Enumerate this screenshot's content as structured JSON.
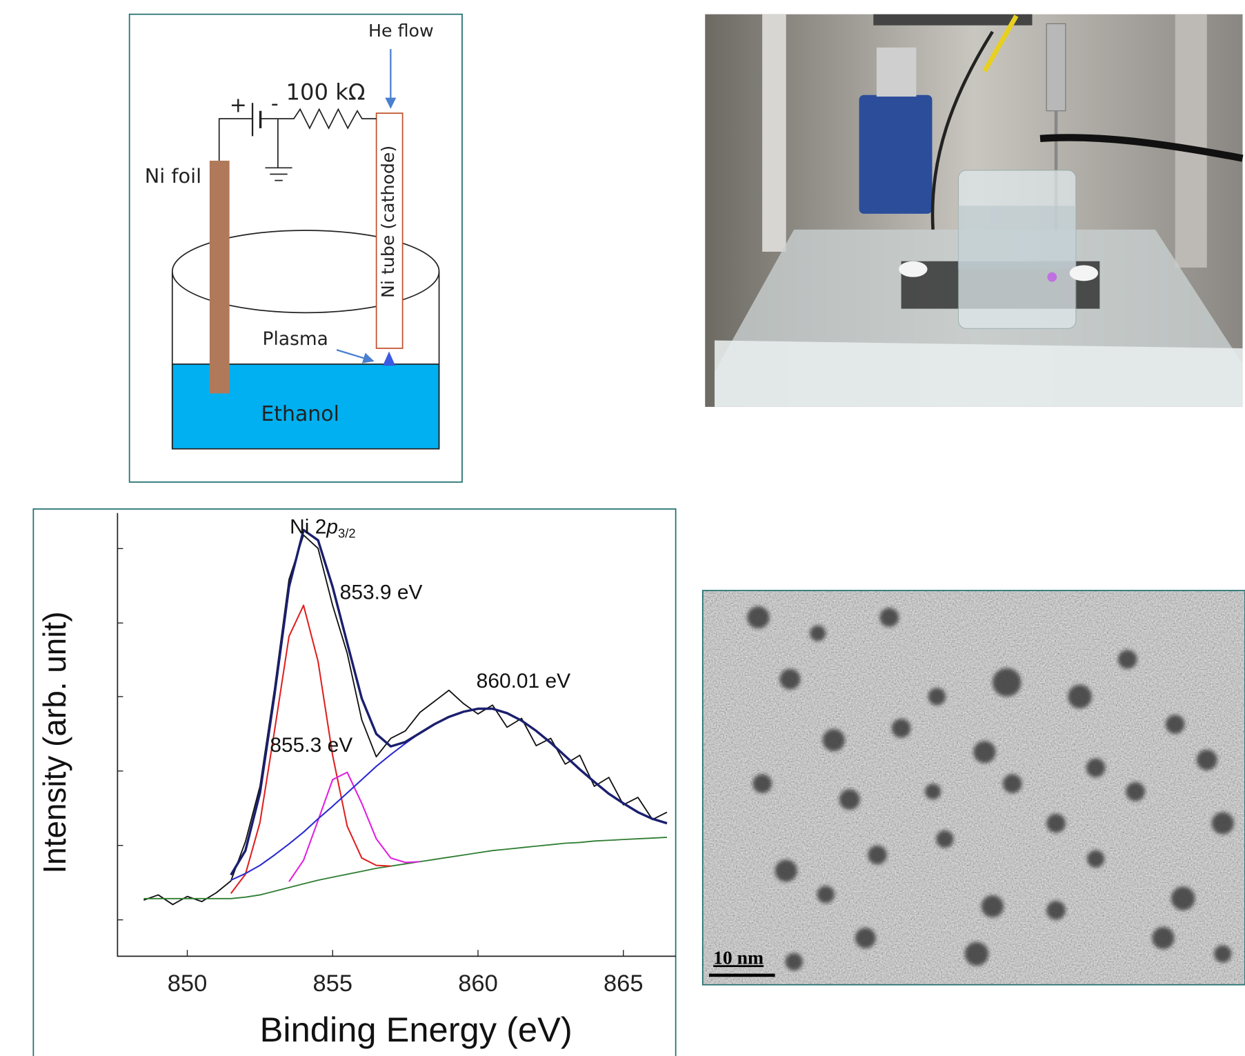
{
  "diagram": {
    "he_flow": "He flow",
    "plus": "+",
    "minus": "-",
    "resistor": "100 kΩ",
    "foil": "Ni foil",
    "tube": "Ni tube (cathode)",
    "plasma": "Plasma",
    "liquid": "Ethanol"
  },
  "tem": {
    "scale_bar": "10 nm"
  },
  "chart_data": {
    "type": "line",
    "xlabel": "Binding Energy (eV)",
    "ylabel": "Intensity (arb. unit)",
    "peak_label": {
      "text": "Ni 2",
      "italic": "p",
      "subscript": "3/2"
    },
    "annotations": [
      "853.9 eV",
      "860.01 eV",
      "855.3 eV"
    ],
    "xlim": [
      847.6,
      866.8
    ],
    "xticks": [
      850,
      855,
      860,
      865
    ],
    "ylim": [
      0,
      6
    ],
    "series": [
      {
        "color": "#111111",
        "width": 1.6,
        "x": [
          848.5,
          849,
          849.5,
          850,
          850.5,
          851,
          851.5,
          852,
          852.5,
          853,
          853.5,
          854,
          854.5,
          855,
          855.5,
          856,
          856.5,
          857,
          857.5,
          858,
          858.5,
          859,
          859.5,
          860,
          860.5,
          861,
          861.5,
          862,
          862.5,
          863,
          863.5,
          864,
          864.5,
          865,
          865.5,
          866,
          866.5
        ],
        "values": [
          0.76,
          0.83,
          0.7,
          0.81,
          0.74,
          0.86,
          1.02,
          1.55,
          2.3,
          3.62,
          5.1,
          5.7,
          5.52,
          4.75,
          4.1,
          3.2,
          2.7,
          2.95,
          3.05,
          3.3,
          3.45,
          3.6,
          3.42,
          3.28,
          3.4,
          3.1,
          3.22,
          2.85,
          2.95,
          2.6,
          2.72,
          2.3,
          2.42,
          2.05,
          2.15,
          1.85,
          1.95
        ]
      },
      {
        "color": "#2e7d32",
        "width": 1.6,
        "x": [
          848.5,
          849,
          849.5,
          850,
          850.5,
          851,
          851.5,
          852,
          852.5,
          853,
          853.5,
          854,
          854.5,
          855,
          855.5,
          856,
          856.5,
          857,
          857.5,
          858,
          858.5,
          859,
          859.5,
          860,
          860.5,
          861,
          861.5,
          862,
          862.5,
          863,
          863.5,
          864,
          864.5,
          865,
          865.5,
          866,
          866.5
        ],
        "values": [
          0.78,
          0.78,
          0.78,
          0.78,
          0.78,
          0.78,
          0.78,
          0.8,
          0.83,
          0.88,
          0.93,
          0.98,
          1.03,
          1.07,
          1.11,
          1.15,
          1.19,
          1.22,
          1.25,
          1.28,
          1.31,
          1.34,
          1.37,
          1.4,
          1.43,
          1.45,
          1.47,
          1.49,
          1.51,
          1.53,
          1.54,
          1.56,
          1.57,
          1.58,
          1.59,
          1.6,
          1.61
        ]
      },
      {
        "color": "#e02020",
        "width": 1.8,
        "x": [
          851.5,
          852,
          852.5,
          853,
          853.5,
          854,
          854.5,
          855,
          855.5,
          856,
          856.5,
          857
        ],
        "values": [
          0.85,
          1.11,
          1.81,
          3.05,
          4.33,
          4.75,
          3.99,
          2.72,
          1.76,
          1.33,
          1.23,
          1.22
        ]
      },
      {
        "color": "#e020e0",
        "width": 1.8,
        "x": [
          853.5,
          854,
          854.5,
          855,
          855.5,
          856,
          856.5,
          857,
          857.5,
          858
        ],
        "values": [
          1.01,
          1.3,
          1.84,
          2.39,
          2.49,
          2.07,
          1.59,
          1.33,
          1.27,
          1.28
        ]
      },
      {
        "color": "#2a2ad0",
        "width": 1.8,
        "x": [
          851.5,
          852,
          852.5,
          853,
          853.5,
          854,
          854.5,
          855,
          855.5,
          856,
          856.5,
          857,
          857.5,
          858,
          858.5,
          859,
          859.5,
          860,
          860.5,
          861,
          861.5,
          862,
          862.5,
          863,
          863.5,
          864,
          864.5,
          865,
          865.5,
          866,
          866.5
        ],
        "values": [
          1.03,
          1.12,
          1.23,
          1.37,
          1.52,
          1.68,
          1.86,
          2.03,
          2.21,
          2.39,
          2.57,
          2.73,
          2.88,
          3.02,
          3.14,
          3.24,
          3.31,
          3.35,
          3.35,
          3.29,
          3.19,
          3.05,
          2.89,
          2.71,
          2.53,
          2.36,
          2.2,
          2.07,
          1.95,
          1.86,
          1.8
        ]
      },
      {
        "color": "#1a1f6e",
        "width": 3,
        "x": [
          851.5,
          852,
          852.5,
          853,
          853.5,
          854,
          854.5,
          855,
          855.5,
          856,
          856.5,
          857,
          857.5,
          858,
          858.5,
          859,
          859.5,
          860,
          860.5,
          861,
          861.5,
          862,
          862.5,
          863,
          863.5,
          864,
          864.5,
          865,
          865.5,
          866,
          866.5
        ],
        "values": [
          1.1,
          1.43,
          2.21,
          3.54,
          5.0,
          5.77,
          5.63,
          5.0,
          4.24,
          3.49,
          3.01,
          2.84,
          2.9,
          3.02,
          3.14,
          3.24,
          3.31,
          3.35,
          3.35,
          3.29,
          3.19,
          3.05,
          2.89,
          2.71,
          2.53,
          2.36,
          2.2,
          2.07,
          1.95,
          1.86,
          1.8
        ]
      }
    ]
  }
}
